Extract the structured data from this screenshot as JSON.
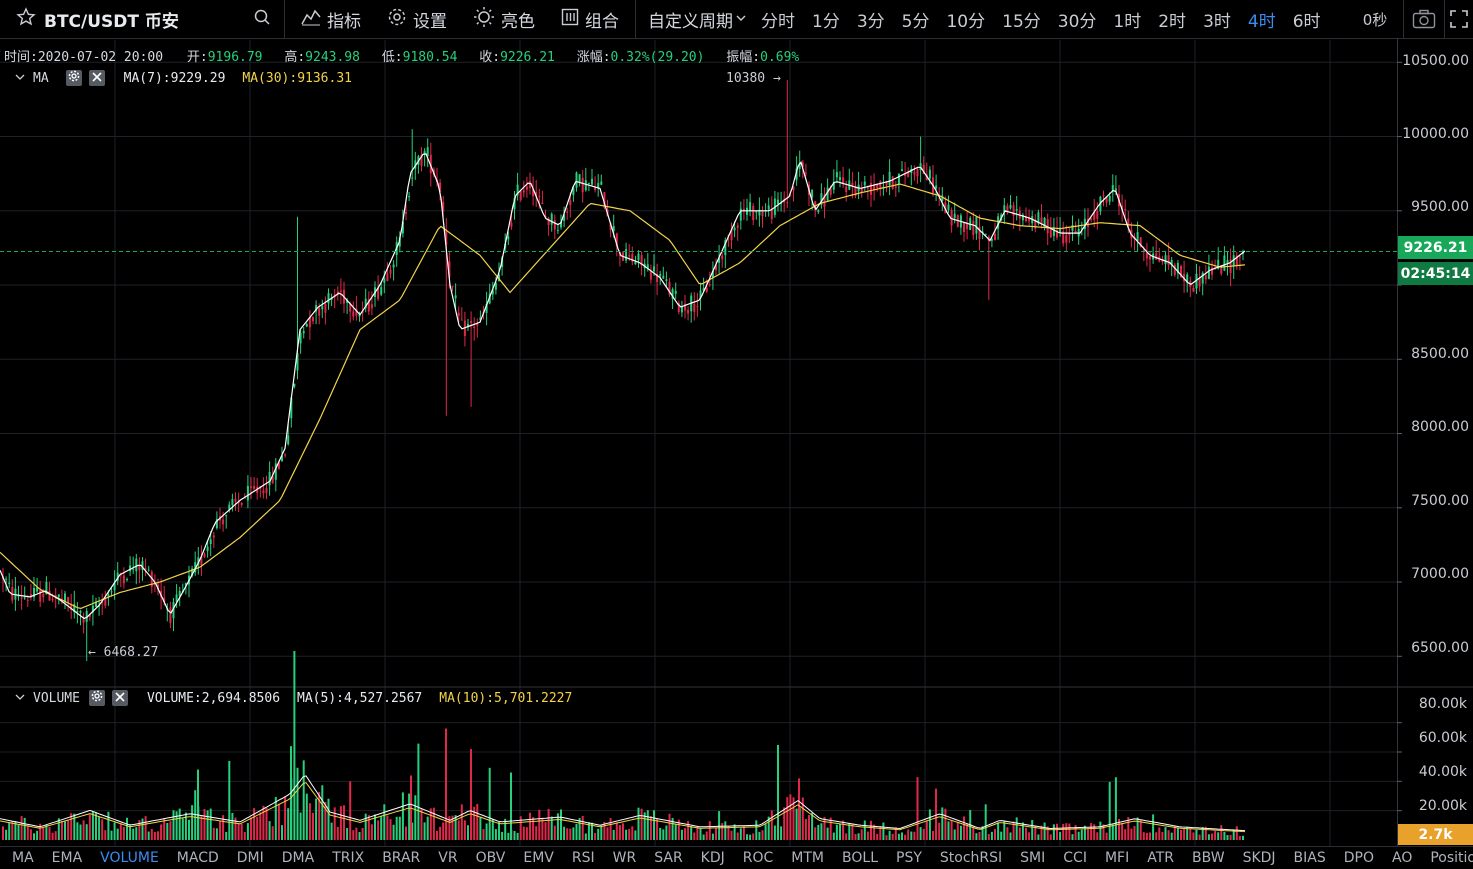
{
  "toolbar": {
    "symbol": "BTC/USDT 币安",
    "tools": [
      {
        "label": "指标",
        "icon": "indicator-icon"
      },
      {
        "label": "设置",
        "icon": "gear-icon"
      },
      {
        "label": "亮色",
        "icon": "sun-icon"
      },
      {
        "label": "组合",
        "icon": "layout-icon"
      }
    ],
    "custom_period": "自定义周期",
    "periods": [
      "分时",
      "1分",
      "3分",
      "5分",
      "10分",
      "15分",
      "30分",
      "1时",
      "2时",
      "3时",
      "4时",
      "6时"
    ],
    "active_period": "4时",
    "countdown": "0秒"
  },
  "ohlc": {
    "time_label": "时间:",
    "time": "2020-07-02 20:00",
    "open_label": "开:",
    "open": "9196.79",
    "high_label": "高:",
    "high": "9243.98",
    "low_label": "低:",
    "low": "9180.54",
    "close_label": "收:",
    "close": "9226.21",
    "change_label": "涨幅:",
    "change": "0.32%(29.20)",
    "amp_label": "振幅:",
    "amp": "0.69%"
  },
  "ma_legend": {
    "name": "MA",
    "ma7": "MA(7):9229.29",
    "ma30": "MA(30):9136.31"
  },
  "vol_legend": {
    "name": "VOLUME",
    "vol": "VOLUME:2,694.8506",
    "ma5": "MA(5):4,527.2567",
    "ma10": "MA(10):5,701.2227"
  },
  "annotations": {
    "max": "10380 →",
    "min": "← 6468.27"
  },
  "price_axis": [
    "10500.00",
    "10000.00",
    "9500.00",
    "9000.00",
    "8500.00",
    "8000.00",
    "7500.00",
    "7000.00",
    "6500.00"
  ],
  "volume_axis": [
    "80.00k",
    "60.00k",
    "40.00k",
    "20.00k"
  ],
  "current_price": "9226.21",
  "countdown_label": "02:45:14",
  "current_volume": "2.7k",
  "colors": {
    "up": "#26d07c",
    "down": "#e0294a",
    "ma_short": "#ffffff",
    "ma_long": "#f2d34a",
    "active": "#3b8cf0",
    "price_tag": "#18a85a",
    "volume_tag": "#e8a12a"
  },
  "indicators": [
    "MA",
    "EMA",
    "VOLUME",
    "MACD",
    "DMI",
    "DMA",
    "TRIX",
    "BRAR",
    "VR",
    "OBV",
    "EMV",
    "RSI",
    "WR",
    "SAR",
    "KDJ",
    "ROC",
    "MTM",
    "BOLL",
    "PSY",
    "StochRSI",
    "SMI",
    "CCI",
    "MFI",
    "ATR",
    "BBW",
    "SKDJ",
    "BIAS",
    "DPO",
    "AO",
    "Position"
  ],
  "active_indicator": "VOLUME",
  "chart_data": {
    "type": "candlestick",
    "interval": "4h",
    "y_range": [
      6300,
      10650
    ],
    "ma7_keypoints": [
      [
        0,
        7080
      ],
      [
        10,
        6920
      ],
      [
        30,
        6900
      ],
      [
        45,
        6940
      ],
      [
        60,
        6880
      ],
      [
        85,
        6750
      ],
      [
        100,
        6850
      ],
      [
        120,
        7050
      ],
      [
        140,
        7120
      ],
      [
        155,
        7000
      ],
      [
        170,
        6780
      ],
      [
        185,
        6960
      ],
      [
        200,
        7150
      ],
      [
        215,
        7400
      ],
      [
        240,
        7550
      ],
      [
        270,
        7680
      ],
      [
        285,
        7900
      ],
      [
        300,
        8700
      ],
      [
        318,
        8850
      ],
      [
        340,
        8950
      ],
      [
        360,
        8800
      ],
      [
        380,
        9000
      ],
      [
        400,
        9300
      ],
      [
        410,
        9750
      ],
      [
        425,
        9900
      ],
      [
        440,
        9650
      ],
      [
        450,
        9000
      ],
      [
        460,
        8700
      ],
      [
        480,
        8750
      ],
      [
        500,
        9100
      ],
      [
        515,
        9600
      ],
      [
        530,
        9700
      ],
      [
        545,
        9450
      ],
      [
        560,
        9400
      ],
      [
        575,
        9700
      ],
      [
        600,
        9650
      ],
      [
        620,
        9200
      ],
      [
        640,
        9150
      ],
      [
        660,
        9050
      ],
      [
        680,
        8850
      ],
      [
        700,
        8900
      ],
      [
        720,
        9200
      ],
      [
        740,
        9500
      ],
      [
        770,
        9500
      ],
      [
        790,
        9600
      ],
      [
        800,
        9850
      ],
      [
        815,
        9500
      ],
      [
        835,
        9700
      ],
      [
        860,
        9650
      ],
      [
        890,
        9700
      ],
      [
        920,
        9800
      ],
      [
        935,
        9650
      ],
      [
        950,
        9450
      ],
      [
        975,
        9400
      ],
      [
        990,
        9300
      ],
      [
        1005,
        9500
      ],
      [
        1030,
        9450
      ],
      [
        1060,
        9350
      ],
      [
        1080,
        9350
      ],
      [
        1100,
        9550
      ],
      [
        1115,
        9650
      ],
      [
        1130,
        9350
      ],
      [
        1150,
        9200
      ],
      [
        1170,
        9150
      ],
      [
        1190,
        9000
      ],
      [
        1210,
        9100
      ],
      [
        1230,
        9150
      ],
      [
        1245,
        9229
      ]
    ],
    "ma30_keypoints": [
      [
        0,
        7200
      ],
      [
        40,
        6950
      ],
      [
        80,
        6820
      ],
      [
        120,
        6930
      ],
      [
        160,
        7000
      ],
      [
        200,
        7100
      ],
      [
        240,
        7300
      ],
      [
        280,
        7550
      ],
      [
        320,
        8100
      ],
      [
        360,
        8700
      ],
      [
        400,
        8900
      ],
      [
        440,
        9400
      ],
      [
        480,
        9200
      ],
      [
        510,
        8950
      ],
      [
        550,
        9250
      ],
      [
        590,
        9550
      ],
      [
        630,
        9500
      ],
      [
        670,
        9300
      ],
      [
        700,
        9000
      ],
      [
        740,
        9150
      ],
      [
        780,
        9400
      ],
      [
        820,
        9550
      ],
      [
        860,
        9620
      ],
      [
        900,
        9680
      ],
      [
        940,
        9600
      ],
      [
        980,
        9450
      ],
      [
        1020,
        9400
      ],
      [
        1060,
        9380
      ],
      [
        1100,
        9420
      ],
      [
        1140,
        9400
      ],
      [
        1180,
        9200
      ],
      [
        1220,
        9120
      ],
      [
        1245,
        9136
      ]
    ],
    "volume_ma_keypoints": [
      [
        0,
        13000
      ],
      [
        40,
        8000
      ],
      [
        90,
        18000
      ],
      [
        130,
        9000
      ],
      [
        190,
        16000
      ],
      [
        240,
        11000
      ],
      [
        290,
        28000
      ],
      [
        305,
        40000
      ],
      [
        330,
        17000
      ],
      [
        360,
        12000
      ],
      [
        410,
        22000
      ],
      [
        450,
        12000
      ],
      [
        470,
        18000
      ],
      [
        500,
        11000
      ],
      [
        560,
        14000
      ],
      [
        600,
        9000
      ],
      [
        640,
        15000
      ],
      [
        700,
        8000
      ],
      [
        760,
        9000
      ],
      [
        798,
        24000
      ],
      [
        820,
        13000
      ],
      [
        860,
        9000
      ],
      [
        900,
        7000
      ],
      [
        940,
        16000
      ],
      [
        980,
        7000
      ],
      [
        1000,
        12000
      ],
      [
        1050,
        7000
      ],
      [
        1100,
        8000
      ],
      [
        1135,
        13000
      ],
      [
        1180,
        8000
      ],
      [
        1245,
        5700
      ]
    ],
    "highlights": {
      "max": 10380,
      "min": 6468.27,
      "last_close": 9226.21
    }
  }
}
